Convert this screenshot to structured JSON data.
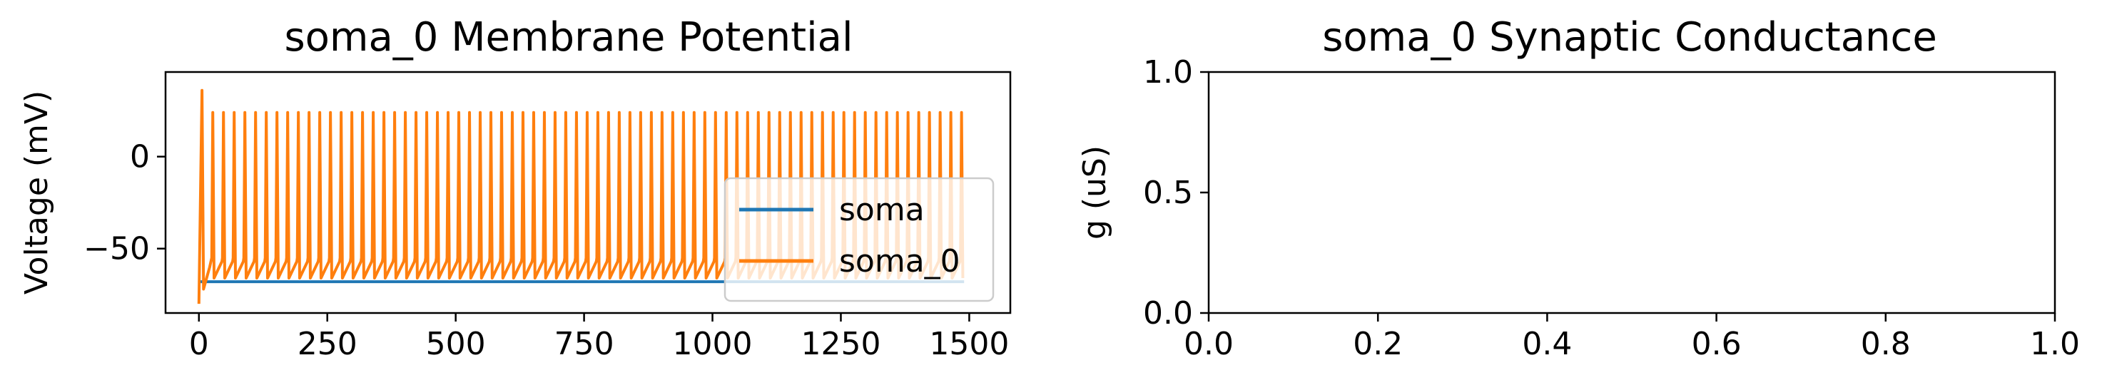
{
  "colors": {
    "soma": "#1f77b4",
    "soma_0": "#ff7f0e",
    "axis": "#000000",
    "legend_border": "#cccccc"
  },
  "chart_data": [
    {
      "type": "line",
      "title": "soma_0 Membrane Potential",
      "xlabel": "",
      "ylabel": "Voltage (mV)",
      "xlim": [
        -65,
        1580
      ],
      "ylim": [
        -85,
        46
      ],
      "xticks": [
        "0",
        "250",
        "500",
        "750",
        "1000",
        "1250",
        "1500"
      ],
      "yticks": [
        "0",
        "−50"
      ],
      "legend": {
        "placement": "lower-right",
        "entries": [
          "soma",
          "soma_0"
        ]
      },
      "series": [
        {
          "name": "soma",
          "color": "#1f77b4",
          "visible_behind": true
        },
        {
          "name": "soma_0",
          "color": "#ff7f0e",
          "start": {
            "x": 0,
            "y": -80
          },
          "first_spike": {
            "x": 6,
            "y": 36
          },
          "spike_start_x": 27,
          "spike_end_x": 1485,
          "spike_count": 71,
          "spike_peak_mv": 24,
          "trough_mv": -66
        }
      ]
    },
    {
      "type": "line",
      "title": "soma_0 Synaptic Conductance",
      "xlabel": "",
      "ylabel": "g (uS)",
      "xlim": [
        0,
        1
      ],
      "ylim": [
        0,
        1
      ],
      "xticks": [
        "0.0",
        "0.2",
        "0.4",
        "0.6",
        "0.8",
        "1.0"
      ],
      "yticks": [
        "0.0",
        "0.5",
        "1.0"
      ],
      "series": []
    }
  ]
}
